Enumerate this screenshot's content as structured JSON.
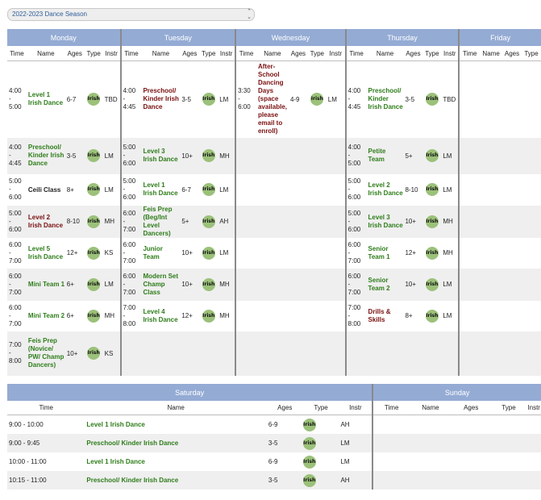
{
  "season": {
    "label": "2022-2023 Dance Season"
  },
  "days": [
    "Monday",
    "Tuesday",
    "Wednesday",
    "Thursday",
    "Friday"
  ],
  "cols": [
    "Time",
    "Name",
    "Ages",
    "Type",
    "Instr"
  ],
  "badge": "Irish",
  "colors": {
    "header": "#94abd4",
    "badge": "#9bc17a",
    "green_name": "#2e7d1a",
    "red_name": "#7a1010"
  },
  "rows": [
    {
      "mon": {
        "t": "4:00\n-\n5:00",
        "n": "Level 1 Irish Dance",
        "c": "g",
        "a": "6-7",
        "i": "TBD"
      },
      "tue": {
        "t": "4:00\n-\n4:45",
        "n": "Preschool/ Kinder Irish Dance",
        "c": "r",
        "a": "3-5",
        "i": "LM"
      },
      "wed": {
        "t": "3:30\n-\n6:00",
        "n": "After-School Dancing Days (space available, please email to enroll)",
        "c": "r",
        "a": "4-9",
        "i": "LM"
      },
      "thu": {
        "t": "4:00\n-\n4:45",
        "n": "Preschool/ Kinder Irish Dance",
        "c": "g",
        "a": "3-5",
        "i": "TBD"
      }
    },
    {
      "mon": {
        "t": "4:00\n-\n4:45",
        "n": "Preschool/ Kinder Irish Dance",
        "c": "g",
        "a": "3-5",
        "i": "LM"
      },
      "tue": {
        "t": "5:00\n-\n6:00",
        "n": "Level 3 Irish Dance",
        "c": "g",
        "a": "10+",
        "i": "MH"
      },
      "thu": {
        "t": "4:00\n-\n5:00",
        "n": "Petite Team",
        "c": "g",
        "a": "5+",
        "i": "LM"
      }
    },
    {
      "mon": {
        "t": "5:00\n-\n6:00",
        "n": "Ceili Class",
        "c": "k",
        "a": "8+",
        "i": "LM"
      },
      "tue": {
        "t": "5:00\n-\n6:00",
        "n": "Level 1 Irish Dance",
        "c": "g",
        "a": "6-7",
        "i": "LM"
      },
      "thu": {
        "t": "5:00\n-\n6:00",
        "n": "Level 2 Irish Dance",
        "c": "g",
        "a": "8-10",
        "i": "LM"
      }
    },
    {
      "mon": {
        "t": "5:00\n-\n6:00",
        "n": "Level 2 Irish Dance",
        "c": "r",
        "a": "8-10",
        "i": "MH"
      },
      "tue": {
        "t": "6:00\n-\n7:00",
        "n": "Feis Prep (Beg/Int Level Dancers)",
        "c": "g",
        "a": "5+",
        "i": "AH"
      },
      "thu": {
        "t": "5:00\n-\n6:00",
        "n": "Level 3 Irish Dance",
        "c": "g",
        "a": "10+",
        "i": "MH"
      }
    },
    {
      "mon": {
        "t": "6:00\n-\n7:00",
        "n": "Level 5 Irish Dance",
        "c": "g",
        "a": "12+",
        "i": "KS"
      },
      "tue": {
        "t": "6:00\n-\n7:00",
        "n": "Junior Team",
        "c": "g",
        "a": "10+",
        "i": "LM"
      },
      "thu": {
        "t": "6:00\n-\n7:00",
        "n": "Senior Team 1",
        "c": "g",
        "a": "12+",
        "i": "MH"
      }
    },
    {
      "mon": {
        "t": "6:00\n-\n7:00",
        "n": "Mini Team 1",
        "c": "g",
        "a": "6+",
        "i": "LM"
      },
      "tue": {
        "t": "6:00\n-\n7:00",
        "n": "Modern Set Champ Class",
        "c": "g",
        "a": "10+",
        "i": "MH"
      },
      "thu": {
        "t": "6:00\n-\n7:00",
        "n": "Senior Team 2",
        "c": "g",
        "a": "10+",
        "i": "LM"
      }
    },
    {
      "mon": {
        "t": "6:00\n-\n7:00",
        "n": "Mini Team 2",
        "c": "g",
        "a": "6+",
        "i": "MH"
      },
      "tue": {
        "t": "7:00\n-\n8:00",
        "n": "Level 4 Irish Dance",
        "c": "g",
        "a": "12+",
        "i": "MH"
      },
      "thu": {
        "t": "7:00\n-\n8:00",
        "n": "Drills & Skills",
        "c": "r",
        "a": "8+",
        "i": "LM"
      }
    },
    {
      "mon": {
        "t": "7:00\n-\n8:00",
        "n": "Feis Prep (Novice/ PW/ Champ Dancers)",
        "c": "g",
        "a": "10+",
        "i": "KS"
      }
    }
  ],
  "weekend": {
    "days": [
      "Saturday",
      "Sunday"
    ],
    "cols": [
      "Time",
      "Name",
      "Ages",
      "Type",
      "Instr"
    ],
    "sat": [
      {
        "t": "9:00 - 10:00",
        "n": "Level 1 Irish Dance",
        "a": "6-9",
        "i": "AH"
      },
      {
        "t": "9:00 - 9:45",
        "n": "Preschool/ Kinder Irish Dance",
        "a": "3-5",
        "i": "LM"
      },
      {
        "t": "10:00 - 11:00",
        "n": "Level 1 Irish Dance",
        "a": "6-9",
        "i": "LM"
      },
      {
        "t": "10:15 - 11:00",
        "n": "Preschool/ Kinder Irish Dance",
        "a": "3-5",
        "i": "AH"
      }
    ]
  }
}
